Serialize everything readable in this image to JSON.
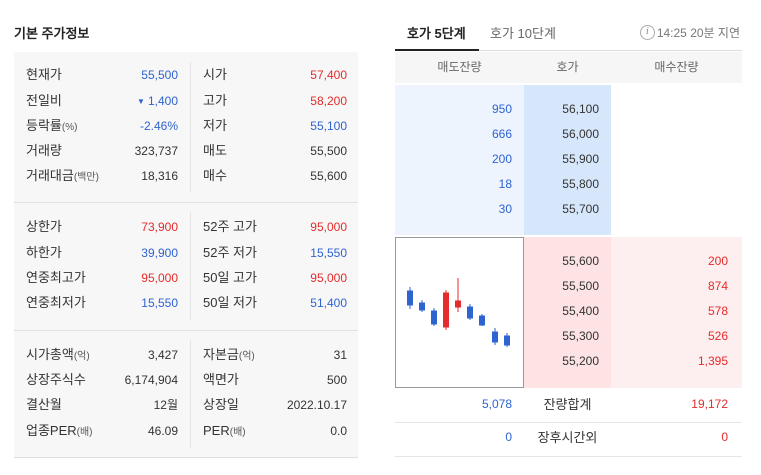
{
  "colors": {
    "up": "#e52b2b",
    "down": "#2f63d0"
  },
  "basic_info": {
    "title": "기본 주가정보",
    "sections": [
      {
        "rows": [
          {
            "left": {
              "label": "현재가",
              "value": "55,500"
            },
            "right": {
              "label": "시가",
              "value": "57,400"
            }
          },
          {
            "left": {
              "label": "전일비",
              "arrow": "▼",
              "value": "1,400"
            },
            "right": {
              "label": "고가",
              "value": "58,200"
            }
          },
          {
            "left": {
              "label": "등락률",
              "unit": "(%)",
              "value": "-2.46%"
            },
            "right": {
              "label": "저가",
              "value": "55,100"
            }
          },
          {
            "left": {
              "label": "거래량",
              "value": "323,737"
            },
            "right": {
              "label": "매도",
              "value": "55,500"
            }
          },
          {
            "left": {
              "label": "거래대금",
              "unit": "(백만)",
              "value": "18,316"
            },
            "right": {
              "label": "매수",
              "value": "55,600"
            }
          }
        ]
      },
      {
        "rows": [
          {
            "left": {
              "label": "상한가",
              "value": "73,900"
            },
            "right": {
              "label": "52주 고가",
              "value": "95,000"
            }
          },
          {
            "left": {
              "label": "하한가",
              "value": "39,900"
            },
            "right": {
              "label": "52주 저가",
              "value": "15,550"
            }
          },
          {
            "left": {
              "label": "연중최고가",
              "value": "95,000"
            },
            "right": {
              "label": "50일 고가",
              "value": "95,000"
            }
          },
          {
            "left": {
              "label": "연중최저가",
              "value": "15,550"
            },
            "right": {
              "label": "50일 저가",
              "value": "51,400"
            }
          }
        ]
      },
      {
        "rows": [
          {
            "left": {
              "label": "시가총액",
              "unit": "(억)",
              "value": "3,427"
            },
            "right": {
              "label": "자본금",
              "unit": "(억)",
              "value": "31"
            }
          },
          {
            "left": {
              "label": "상장주식수",
              "value": "6,174,904"
            },
            "right": {
              "label": "액면가",
              "value": "500"
            }
          },
          {
            "left": {
              "label": "결산월",
              "value": "12월"
            },
            "right": {
              "label": "상장일",
              "value": "2022.10.17"
            }
          },
          {
            "left": {
              "label": "업종PER",
              "unit": "(배)",
              "value": "46.09"
            },
            "right": {
              "label": "PER",
              "unit": "(배)",
              "value": "0.0"
            }
          }
        ]
      }
    ]
  },
  "quote": {
    "tabs": [
      {
        "label": "호가 5단계",
        "active": true
      },
      {
        "label": "호가 10단계",
        "active": false
      }
    ],
    "info_icon": "info-icon",
    "info_glyph": "i",
    "delay_notice": "14:25 20분 지연",
    "headers": [
      "매도잔량",
      "호가",
      "매수잔량"
    ],
    "asks": [
      {
        "volume": "950",
        "price": "56,100"
      },
      {
        "volume": "666",
        "price": "56,000"
      },
      {
        "volume": "200",
        "price": "55,900"
      },
      {
        "volume": "18",
        "price": "55,800"
      },
      {
        "volume": "30",
        "price": "55,700"
      }
    ],
    "bids": [
      {
        "price": "55,600",
        "volume": "200"
      },
      {
        "price": "55,500",
        "volume": "874"
      },
      {
        "price": "55,400",
        "volume": "578"
      },
      {
        "price": "55,300",
        "volume": "526"
      },
      {
        "price": "55,200",
        "volume": "1,395"
      }
    ],
    "total": {
      "ask_volume": "5,078",
      "label": "잔량합계",
      "bid_volume": "19,172"
    },
    "after_hours": {
      "ask_volume": "0",
      "label": "장후시간외",
      "bid_volume": "0"
    }
  }
}
